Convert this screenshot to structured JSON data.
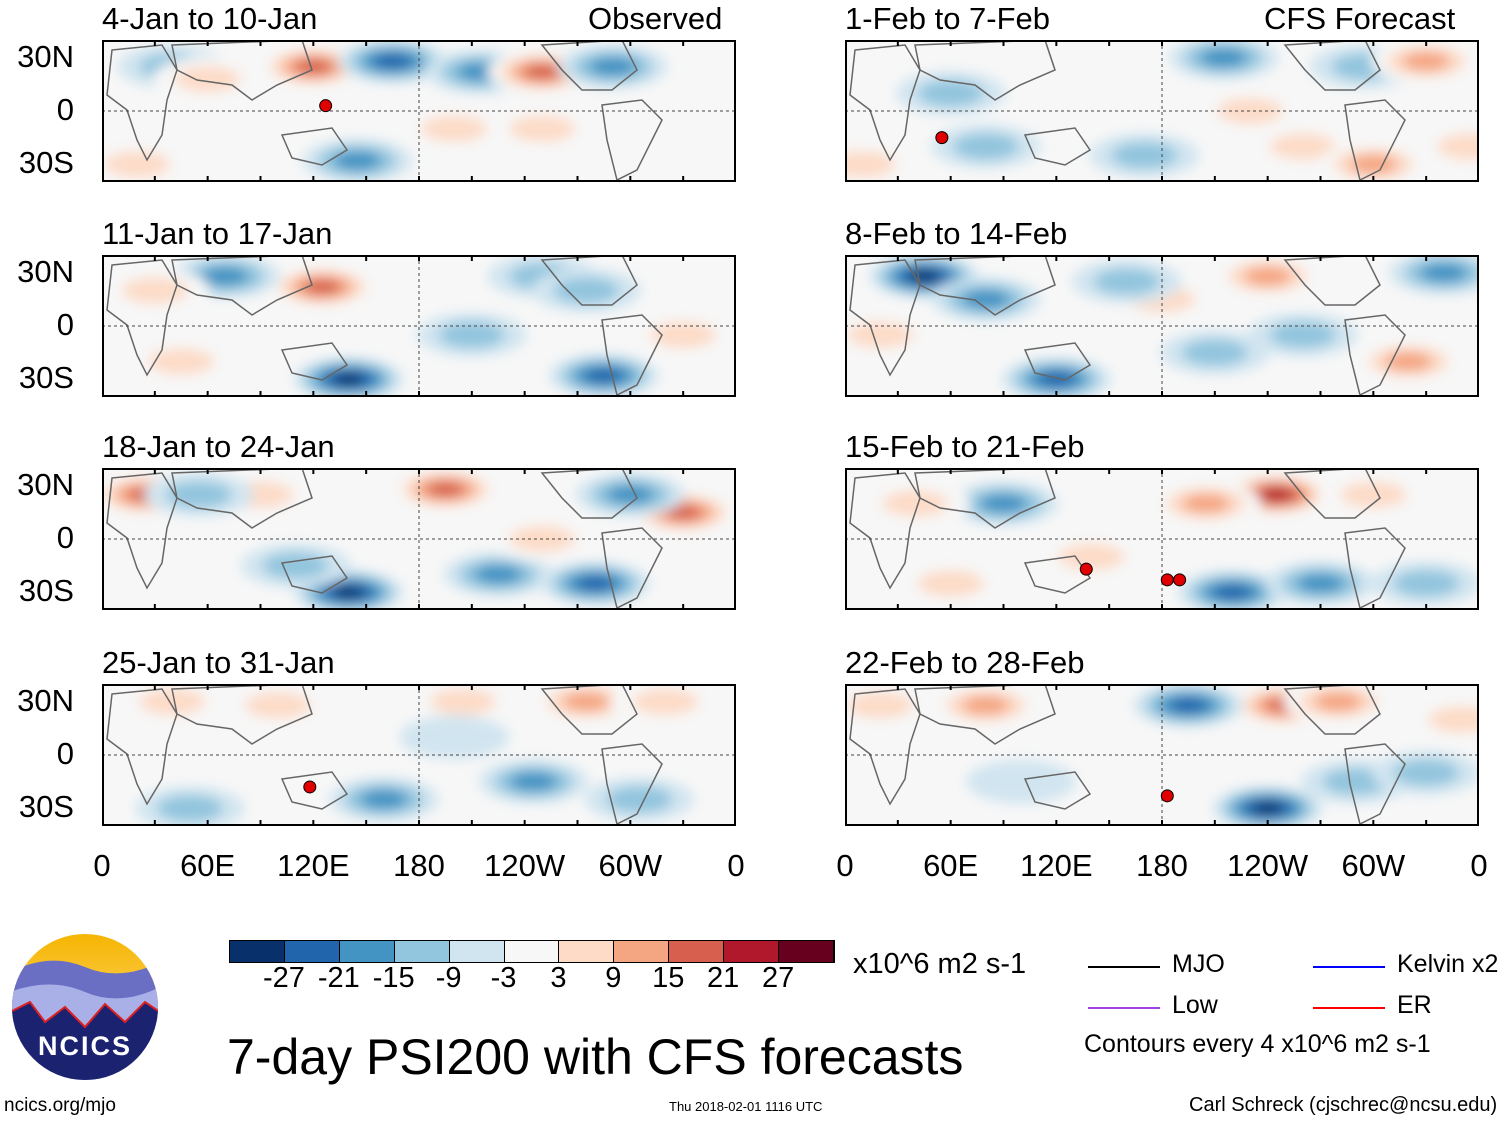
{
  "header": {
    "left_label": "Observed",
    "right_label": "CFS Forecast"
  },
  "panels": {
    "left": [
      {
        "title": "4-Jan to 10-Jan"
      },
      {
        "title": "11-Jan to 17-Jan"
      },
      {
        "title": "18-Jan to 24-Jan"
      },
      {
        "title": "25-Jan to 31-Jan"
      }
    ],
    "right": [
      {
        "title": "1-Feb to 7-Feb"
      },
      {
        "title": "8-Feb to 14-Feb"
      },
      {
        "title": "15-Feb to 21-Feb"
      },
      {
        "title": "22-Feb to 28-Feb"
      }
    ]
  },
  "axes": {
    "lat_labels": [
      "30N",
      "0",
      "30S"
    ],
    "lon_labels": [
      "0",
      "60E",
      "120E",
      "180",
      "120W",
      "60W",
      "0"
    ]
  },
  "colorbar": {
    "labels": [
      "-27",
      "-21",
      "-15",
      "-9",
      "-3",
      "3",
      "9",
      "15",
      "21",
      "27"
    ],
    "colors": [
      "#08306b",
      "#2166ac",
      "#4393c3",
      "#92c5de",
      "#d1e5f0",
      "#f7f7f7",
      "#fddbc7",
      "#f4a582",
      "#d6604d",
      "#b2182b",
      "#67001f"
    ],
    "units": "x10^6 m2 s-1"
  },
  "legend": {
    "items": [
      {
        "label": "MJO",
        "color": "#000000"
      },
      {
        "label": "Kelvin x2",
        "color": "#0000ff"
      },
      {
        "label": "Low",
        "color": "#a040e0"
      },
      {
        "label": "ER",
        "color": "#ff0000"
      }
    ],
    "contours_note": "Contours every 4 x10^6 m2 s-1"
  },
  "title": "7-day PSI200 with CFS forecasts",
  "logo": {
    "text": "NCICS"
  },
  "footer": {
    "url": "ncics.org/mjo",
    "timestamp": "Thu 2018-02-01 1116 UTC",
    "author": "Carl Schreck (cjschrec@ncsu.edu)"
  },
  "chart_data": {
    "type": "heatmap",
    "variable": "PSI200 anomaly",
    "units": "x10^6 m2 s-1",
    "lon_range": [
      0,
      360
    ],
    "lat_range": [
      -40,
      40
    ],
    "panels": [
      {
        "title": "4-Jan to 10-Jan",
        "anomalies": [
          [
            120,
            25,
            21
          ],
          [
            165,
            28,
            -24
          ],
          [
            215,
            22,
            -15
          ],
          [
            250,
            22,
            21
          ],
          [
            290,
            25,
            -15
          ],
          [
            40,
            25,
            -9
          ],
          [
            60,
            18,
            9
          ],
          [
            145,
            -28,
            -15
          ],
          [
            250,
            -10,
            9
          ],
          [
            200,
            -10,
            9
          ],
          [
            20,
            -30,
            9
          ]
        ],
        "cyclones": [
          [
            127,
            3
          ]
        ]
      },
      {
        "title": "11-Jan to 17-Jan",
        "anomalies": [
          [
            125,
            22,
            21
          ],
          [
            70,
            28,
            -15
          ],
          [
            45,
            -20,
            9
          ],
          [
            30,
            20,
            9
          ],
          [
            140,
            -30,
            -27
          ],
          [
            285,
            -28,
            -21
          ],
          [
            210,
            -5,
            -9
          ],
          [
            250,
            28,
            -9
          ],
          [
            330,
            -5,
            9
          ],
          [
            275,
            20,
            -9
          ]
        ],
        "cyclones": []
      },
      {
        "title": "18-Jan to 24-Jan",
        "anomalies": [
          [
            25,
            25,
            21
          ],
          [
            90,
            25,
            9
          ],
          [
            55,
            25,
            -9
          ],
          [
            195,
            28,
            21
          ],
          [
            330,
            15,
            24
          ],
          [
            300,
            25,
            -15
          ],
          [
            140,
            -30,
            -27
          ],
          [
            280,
            -25,
            -21
          ],
          [
            225,
            -20,
            -15
          ],
          [
            110,
            -15,
            -9
          ],
          [
            250,
            0,
            9
          ]
        ],
        "cyclones": []
      },
      {
        "title": "25-Jan to 31-Jan",
        "anomalies": [
          [
            40,
            30,
            9
          ],
          [
            100,
            28,
            9
          ],
          [
            205,
            30,
            9
          ],
          [
            275,
            30,
            15
          ],
          [
            320,
            30,
            9
          ],
          [
            50,
            -30,
            -9
          ],
          [
            160,
            -25,
            -15
          ],
          [
            245,
            -15,
            -15
          ],
          [
            305,
            -25,
            -9
          ],
          [
            200,
            10,
            -3
          ]
        ],
        "cyclones": [
          [
            118,
            -18
          ]
        ]
      },
      {
        "title": "1-Feb to 7-Feb",
        "anomalies": [
          [
            215,
            30,
            -15
          ],
          [
            295,
            25,
            -9
          ],
          [
            330,
            28,
            15
          ],
          [
            60,
            10,
            -9
          ],
          [
            80,
            -20,
            -9
          ],
          [
            170,
            -25,
            -9
          ],
          [
            260,
            -20,
            9
          ],
          [
            300,
            -30,
            15
          ],
          [
            230,
            0,
            9
          ],
          [
            355,
            -20,
            9
          ],
          [
            10,
            -30,
            9
          ]
        ],
        "cyclones": [
          [
            55,
            -15
          ]
        ]
      },
      {
        "title": "8-Feb to 14-Feb",
        "anomalies": [
          [
            45,
            28,
            -27
          ],
          [
            80,
            15,
            -15
          ],
          [
            180,
            15,
            9
          ],
          [
            160,
            25,
            -9
          ],
          [
            240,
            28,
            15
          ],
          [
            340,
            30,
            -15
          ],
          [
            20,
            -5,
            9
          ],
          [
            120,
            -30,
            -21
          ],
          [
            210,
            -15,
            -9
          ],
          [
            320,
            -20,
            15
          ],
          [
            260,
            -5,
            -9
          ]
        ],
        "cyclones": []
      },
      {
        "title": "15-Feb to 21-Feb",
        "anomalies": [
          [
            245,
            25,
            27
          ],
          [
            205,
            20,
            15
          ],
          [
            90,
            20,
            -15
          ],
          [
            60,
            -25,
            9
          ],
          [
            140,
            -10,
            9
          ],
          [
            220,
            -30,
            -21
          ],
          [
            270,
            -25,
            -15
          ],
          [
            330,
            -25,
            -9
          ],
          [
            40,
            20,
            9
          ],
          [
            300,
            25,
            9
          ]
        ],
        "cyclones": [
          [
            137,
            -17
          ],
          [
            183,
            -23
          ],
          [
            190,
            -23
          ]
        ]
      },
      {
        "title": "22-Feb to 28-Feb",
        "anomalies": [
          [
            250,
            28,
            24
          ],
          [
            280,
            30,
            15
          ],
          [
            195,
            28,
            -21
          ],
          [
            80,
            28,
            15
          ],
          [
            20,
            28,
            9
          ],
          [
            240,
            -30,
            -27
          ],
          [
            290,
            -15,
            -9
          ],
          [
            330,
            -10,
            -9
          ],
          [
            100,
            -15,
            -3
          ],
          [
            350,
            20,
            9
          ]
        ],
        "cyclones": [
          [
            183,
            -23
          ]
        ]
      }
    ]
  }
}
